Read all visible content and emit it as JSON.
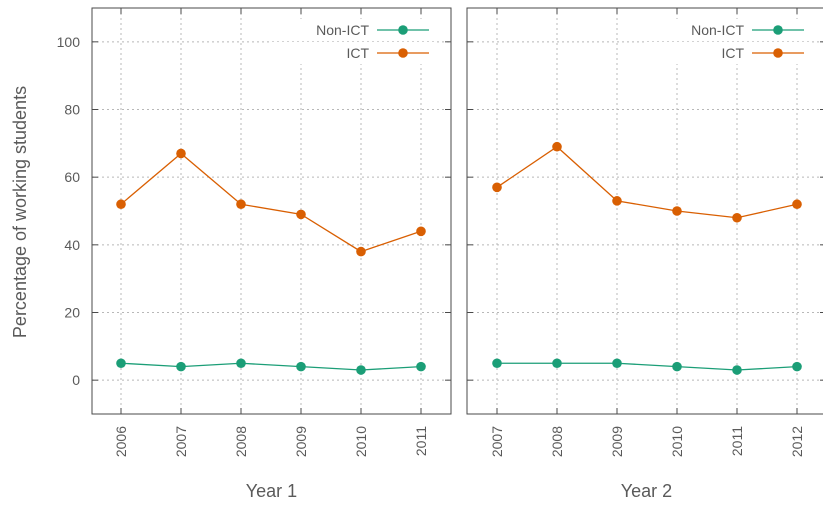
{
  "ylabel": "Percentage of working students",
  "chart_data": [
    {
      "type": "line",
      "xlabel": "Year 1",
      "categories": [
        "2006",
        "2007",
        "2008",
        "2009",
        "2010",
        "2011"
      ],
      "ylim": [
        -10,
        110
      ],
      "yticks": [
        0,
        20,
        40,
        60,
        80,
        100
      ],
      "grid": true,
      "legend_position": "top-right",
      "series": [
        {
          "name": "Non-ICT",
          "color": "#1b9e77",
          "values": [
            5,
            4,
            5,
            4,
            3,
            4
          ]
        },
        {
          "name": "ICT",
          "color": "#d95f02",
          "values": [
            52,
            67,
            52,
            49,
            38,
            44
          ]
        }
      ]
    },
    {
      "type": "line",
      "xlabel": "Year 2",
      "categories": [
        "2007",
        "2008",
        "2009",
        "2010",
        "2011",
        "2012"
      ],
      "ylim": [
        -10,
        110
      ],
      "yticks": [
        0,
        20,
        40,
        60,
        80,
        100
      ],
      "grid": true,
      "legend_position": "top-right",
      "series": [
        {
          "name": "Non-ICT",
          "color": "#1b9e77",
          "values": [
            5,
            5,
            5,
            4,
            3,
            4
          ]
        },
        {
          "name": "ICT",
          "color": "#d95f02",
          "values": [
            57,
            69,
            53,
            50,
            48,
            52
          ]
        }
      ]
    }
  ]
}
